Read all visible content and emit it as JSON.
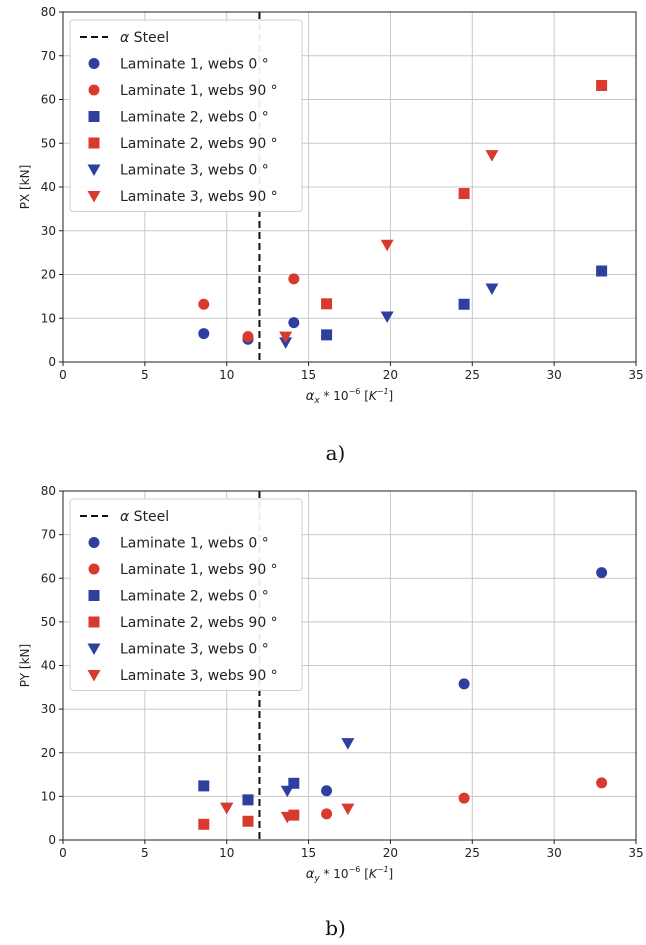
{
  "chart_data": [
    {
      "type": "scatter",
      "ylabel": "PX [kN]",
      "xlabel_parts": {
        "symbol": "α",
        "sub": "x",
        "mid": " * 10",
        "sup": "−6",
        "unit_open": " [",
        "unit_base": "K",
        "unit_sup": "−1",
        "unit_close": "]"
      },
      "caption": "a)",
      "xlim": [
        0,
        35
      ],
      "ylim": [
        0,
        80
      ],
      "xticks": [
        0,
        5,
        10,
        15,
        20,
        25,
        30,
        35
      ],
      "yticks": [
        0,
        10,
        20,
        30,
        40,
        50,
        60,
        70,
        80
      ],
      "grid": true,
      "legend_position": "top-left",
      "vline": {
        "x": 12,
        "label_symbol": "α",
        "label_text": " Steel",
        "style": "dashed",
        "color": "#111111"
      },
      "series": [
        {
          "name": "Laminate 1, webs 0 °",
          "marker": "circle",
          "color": "#2f3f9f",
          "x": [
            8.6,
            11.3,
            14.1
          ],
          "y": [
            6.5,
            5.2,
            9.0
          ]
        },
        {
          "name": "Laminate 1, webs 90 °",
          "marker": "circle",
          "color": "#d93a2e",
          "x": [
            8.6,
            11.3,
            14.1
          ],
          "y": [
            13.2,
            5.8,
            19.0
          ]
        },
        {
          "name": "Laminate 2, webs 0 °",
          "marker": "square",
          "color": "#2f3f9f",
          "x": [
            16.1,
            24.5,
            32.9
          ],
          "y": [
            6.2,
            13.2,
            20.8
          ]
        },
        {
          "name": "Laminate 2, webs 90 °",
          "marker": "square",
          "color": "#d93a2e",
          "x": [
            16.1,
            24.5,
            32.9
          ],
          "y": [
            13.3,
            38.5,
            63.2
          ]
        },
        {
          "name": "Laminate 3, webs 0 °",
          "marker": "triangle-down",
          "color": "#2f3f9f",
          "x": [
            13.6,
            19.8,
            26.2
          ],
          "y": [
            4.5,
            10.4,
            16.8
          ]
        },
        {
          "name": "Laminate 3, webs 90 °",
          "marker": "triangle-down",
          "color": "#d93a2e",
          "x": [
            13.6,
            19.8,
            26.2
          ],
          "y": [
            5.8,
            26.8,
            47.3
          ]
        }
      ]
    },
    {
      "type": "scatter",
      "ylabel": "PY [kN]",
      "xlabel_parts": {
        "symbol": "α",
        "sub": "y",
        "mid": " * 10",
        "sup": "−6",
        "unit_open": " [",
        "unit_base": "K",
        "unit_sup": "−1",
        "unit_close": "]"
      },
      "caption": "b)",
      "xlim": [
        0,
        35
      ],
      "ylim": [
        0,
        80
      ],
      "xticks": [
        0,
        5,
        10,
        15,
        20,
        25,
        30,
        35
      ],
      "yticks": [
        0,
        10,
        20,
        30,
        40,
        50,
        60,
        70,
        80
      ],
      "grid": true,
      "legend_position": "top-left",
      "vline": {
        "x": 12,
        "label_symbol": "α",
        "label_text": " Steel",
        "style": "dashed",
        "color": "#111111"
      },
      "series": [
        {
          "name": "Laminate 1, webs 0 °",
          "marker": "circle",
          "color": "#2f3f9f",
          "x": [
            16.1,
            24.5,
            32.9
          ],
          "y": [
            11.3,
            35.8,
            61.3
          ]
        },
        {
          "name": "Laminate 1, webs 90 °",
          "marker": "circle",
          "color": "#d93a2e",
          "x": [
            16.1,
            24.5,
            32.9
          ],
          "y": [
            6.0,
            9.6,
            13.1
          ]
        },
        {
          "name": "Laminate 2, webs 0 °",
          "marker": "square",
          "color": "#2f3f9f",
          "x": [
            8.6,
            11.3,
            14.1
          ],
          "y": [
            12.4,
            9.2,
            13.0
          ]
        },
        {
          "name": "Laminate 2, webs 90 °",
          "marker": "square",
          "color": "#d93a2e",
          "x": [
            8.6,
            11.3,
            14.1
          ],
          "y": [
            3.6,
            4.3,
            5.7
          ]
        },
        {
          "name": "Laminate 3, webs 0 °",
          "marker": "triangle-down",
          "color": "#2f3f9f",
          "x": [
            10.0,
            13.7,
            17.4
          ],
          "y": [
            7.4,
            11.3,
            22.2
          ]
        },
        {
          "name": "Laminate 3, webs 90 °",
          "marker": "triangle-down",
          "color": "#d93a2e",
          "x": [
            10.0,
            13.7,
            17.4
          ],
          "y": [
            7.4,
            5.3,
            7.2
          ]
        }
      ]
    }
  ]
}
